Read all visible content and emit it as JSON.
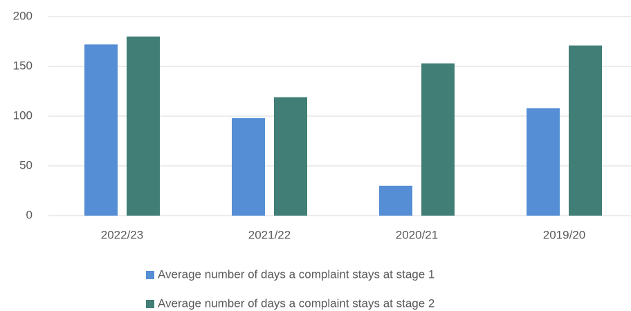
{
  "chart_data": {
    "type": "bar",
    "categories": [
      "2022/23",
      "2021/22",
      "2020/21",
      "2019/20"
    ],
    "series": [
      {
        "name": "Average number of days a complaint stays at stage 1",
        "color": "#558ed5",
        "values": [
          172,
          98,
          30,
          108
        ]
      },
      {
        "name": "Average number of days a complaint stays at stage 2",
        "color": "#407e76",
        "values": [
          180,
          119,
          153,
          171
        ]
      }
    ],
    "ylim": [
      0,
      200
    ],
    "yticks": [
      0,
      50,
      100,
      150,
      200
    ],
    "grid": true,
    "legend": "bottom"
  }
}
